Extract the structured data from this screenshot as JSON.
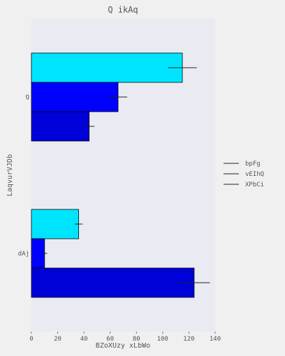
{
  "chart_data": {
    "type": "bar",
    "orientation": "horizontal",
    "title": "Q  ikAq",
    "xlabel": "BZoXUzy xLbWo",
    "ylabel": "LaqvurVJDb",
    "categories": [
      "Q",
      "dAj"
    ],
    "xlim": [
      0,
      140
    ],
    "xticks": [
      0,
      20,
      40,
      60,
      80,
      100,
      120,
      140
    ],
    "grid": false,
    "legend_position": "right",
    "series": [
      {
        "name": "bpFg",
        "color": "#00e5ff",
        "values": [
          115,
          36
        ],
        "errors": [
          11,
          3
        ]
      },
      {
        "name": "vEIhQ",
        "color": "#0000ff",
        "values": [
          66,
          10
        ],
        "errors": [
          7,
          2
        ]
      },
      {
        "name": "XPbCi",
        "color": "#0000d8",
        "values": [
          44,
          124
        ],
        "errors": [
          4,
          12
        ]
      }
    ]
  }
}
